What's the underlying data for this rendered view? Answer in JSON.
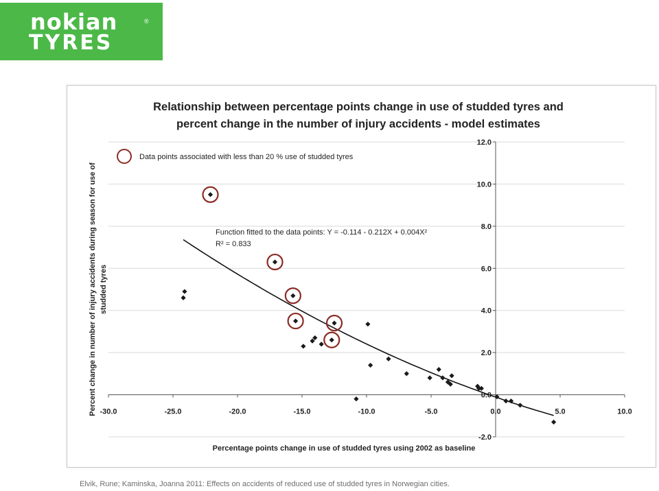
{
  "logo": {
    "line1": "nokian",
    "line2": "TYRES",
    "reg": "®",
    "color": "#4cb848"
  },
  "caption": "Elvik, Rune; Kaminska, Joanna 2011: Effects on accidents of reduced use of studded tyres in Norwegian cities.",
  "chart_data": {
    "type": "scatter",
    "title": [
      "Relationship between percentage points change in use of studded tyres and",
      "percent change in the number of injury accidents - model estimates"
    ],
    "xlabel": "Percentage points change in use of studded tyres using 2002 as baseline",
    "ylabel": [
      "Percent change in number of injury accidents during season for use of",
      "studded tyres"
    ],
    "xlim": [
      -30,
      10
    ],
    "ylim": [
      -2,
      12
    ],
    "xticks": [
      -30,
      -25,
      -20,
      -15,
      -10,
      -5,
      0,
      5,
      10
    ],
    "yticks": [
      -2,
      0,
      2,
      4,
      6,
      8,
      10,
      12
    ],
    "xtick_labels": [
      "-30.0",
      "-25.0",
      "-20.0",
      "-15.0",
      "-10.0",
      "-5.0",
      "0.0",
      "5.0",
      "10.0"
    ],
    "ytick_labels": [
      "-2.0",
      "0.0",
      "2.0",
      "4.0",
      "6.0",
      "8.0",
      "10.0",
      "12.0"
    ],
    "grid": true,
    "legend": {
      "label": "Data points associated with less than 20 % use of studded tyres",
      "placement": "top-left"
    },
    "annotation": {
      "line1": "Function fitted to the data points:  Y = -0.114 - 0.212X + 0.004X²",
      "line2": "R² = 0.833"
    },
    "fit": {
      "a": -0.114,
      "b": -0.212,
      "c": 0.004,
      "x_range": [
        -24.2,
        4.5
      ]
    },
    "points": [
      {
        "x": -22.1,
        "y": 9.5,
        "circled": true
      },
      {
        "x": -17.1,
        "y": 6.3,
        "circled": true
      },
      {
        "x": -15.7,
        "y": 4.7,
        "circled": true
      },
      {
        "x": -15.5,
        "y": 3.5,
        "circled": true
      },
      {
        "x": -12.5,
        "y": 3.4,
        "circled": true
      },
      {
        "x": -12.7,
        "y": 2.6,
        "circled": true
      },
      {
        "x": -24.1,
        "y": 4.9,
        "circled": false
      },
      {
        "x": -24.2,
        "y": 4.6,
        "circled": false
      },
      {
        "x": -14.9,
        "y": 2.3,
        "circled": false
      },
      {
        "x": -14.2,
        "y": 2.55,
        "circled": false
      },
      {
        "x": -14.0,
        "y": 2.7,
        "circled": false
      },
      {
        "x": -13.5,
        "y": 2.4,
        "circled": false
      },
      {
        "x": -9.9,
        "y": 3.35,
        "circled": false
      },
      {
        "x": -9.7,
        "y": 1.4,
        "circled": false
      },
      {
        "x": -8.3,
        "y": 1.7,
        "circled": false
      },
      {
        "x": -10.8,
        "y": -0.2,
        "circled": false
      },
      {
        "x": -6.9,
        "y": 1.0,
        "circled": false
      },
      {
        "x": -5.1,
        "y": 0.8,
        "circled": false
      },
      {
        "x": -4.4,
        "y": 1.2,
        "circled": false
      },
      {
        "x": -4.1,
        "y": 0.8,
        "circled": false
      },
      {
        "x": -3.7,
        "y": 0.6,
        "circled": false
      },
      {
        "x": -3.5,
        "y": 0.5,
        "circled": false
      },
      {
        "x": -3.4,
        "y": 0.9,
        "circled": false
      },
      {
        "x": -1.4,
        "y": 0.4,
        "circled": false
      },
      {
        "x": -1.3,
        "y": 0.3,
        "circled": false
      },
      {
        "x": -1.1,
        "y": 0.3,
        "circled": false
      },
      {
        "x": 0.1,
        "y": -0.1,
        "circled": false
      },
      {
        "x": 0.8,
        "y": -0.3,
        "circled": false
      },
      {
        "x": 1.2,
        "y": -0.3,
        "circled": false
      },
      {
        "x": 1.9,
        "y": -0.5,
        "circled": false
      },
      {
        "x": 4.5,
        "y": -1.3,
        "circled": false
      }
    ],
    "colors": {
      "marker": "#1a1a1a",
      "circle": "#8b2b26",
      "grid": "#d9d9d9",
      "fit": "#111111"
    }
  }
}
